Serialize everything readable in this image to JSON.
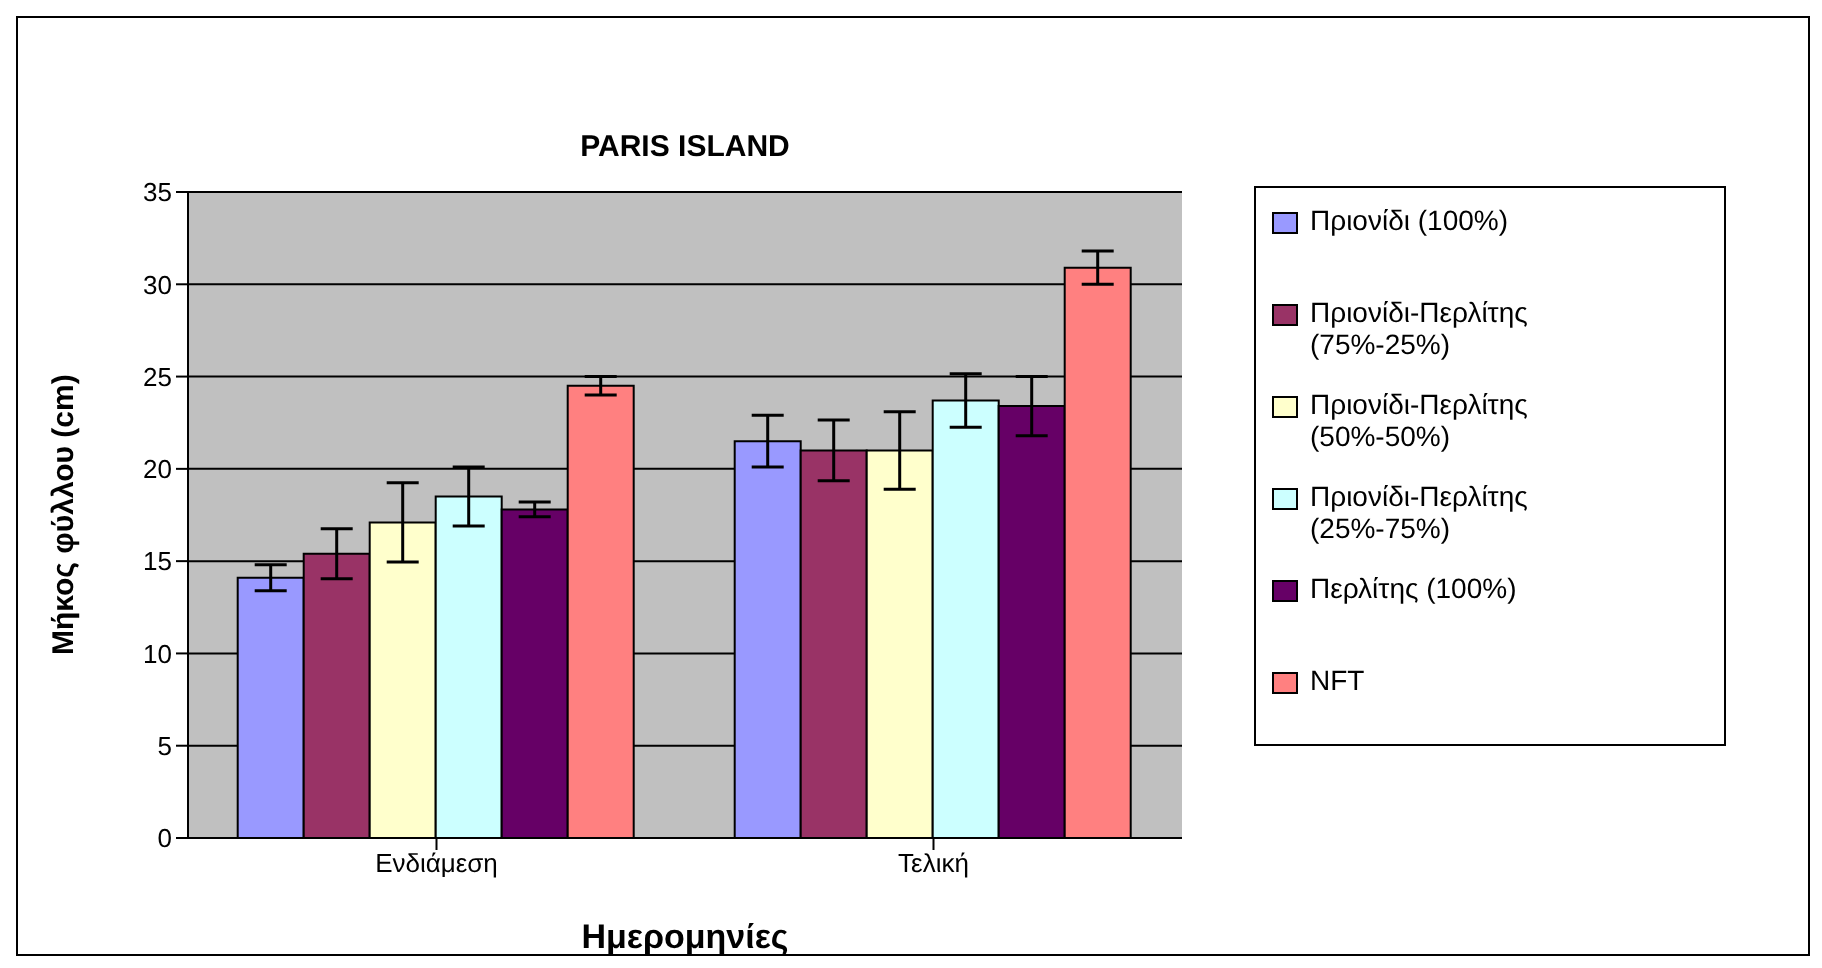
{
  "chart_data": {
    "type": "bar",
    "title": "PARIS ISLAND",
    "xlabel": "Ημερομηνίες",
    "ylabel": "Μήκος φύλλου (cm)",
    "categories": [
      "Ενδιάμεση",
      "Τελική"
    ],
    "series": [
      {
        "name": "Πριονίδι (100%)",
        "color": "#9999ff",
        "values": [
          14.1,
          21.5
        ],
        "errors": [
          0.7,
          1.4
        ]
      },
      {
        "name": "Πριονίδι-Περλίτης (75%-25%)",
        "color": "#993366",
        "values": [
          15.4,
          21.0
        ],
        "errors": [
          1.35,
          1.65
        ]
      },
      {
        "name": "Πριονίδι-Περλίτης (50%-50%)",
        "color": "#ffffcc",
        "values": [
          17.1,
          21.0
        ],
        "errors": [
          2.15,
          2.1
        ]
      },
      {
        "name": "Πριονίδι-Περλίτης (25%-75%)",
        "color": "#ccffff",
        "values": [
          18.5,
          23.7
        ],
        "errors": [
          1.6,
          1.45
        ]
      },
      {
        "name": "Περλίτης (100%)",
        "color": "#660066",
        "values": [
          17.8,
          23.4
        ],
        "errors": [
          0.4,
          1.6
        ]
      },
      {
        "name": "NFT",
        "color": "#ff8080",
        "values": [
          24.5,
          30.9
        ],
        "errors": [
          0.5,
          0.9
        ]
      }
    ],
    "ylim": [
      0,
      35
    ],
    "yticks": [
      0,
      5,
      10,
      15,
      20,
      25,
      30,
      35
    ],
    "grid": "y",
    "legend": "right"
  }
}
